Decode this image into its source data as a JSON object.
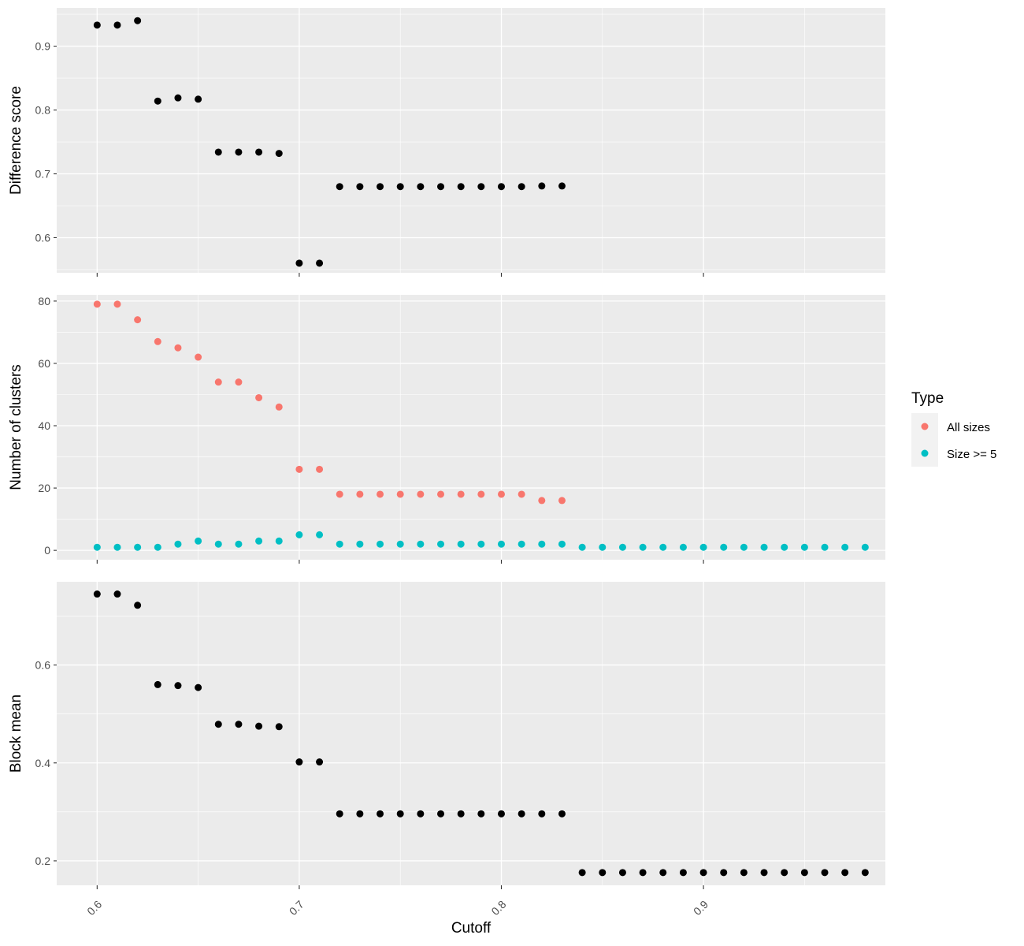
{
  "chart_data": [
    {
      "type": "scatter",
      "panel": "top",
      "ylabel": "Difference score",
      "xlim": [
        0.58,
        0.99
      ],
      "ylim": [
        0.545,
        0.96
      ],
      "y_ticks": [
        0.6,
        0.7,
        0.8,
        0.9
      ],
      "y_tick_labels": [
        "0.6",
        "0.7",
        "0.8",
        "0.9"
      ],
      "grid": true,
      "series": [
        {
          "color": "#000000",
          "x": [
            0.6,
            0.61,
            0.62,
            0.63,
            0.64,
            0.65,
            0.66,
            0.67,
            0.68,
            0.69,
            0.7,
            0.71,
            0.72,
            0.73,
            0.74,
            0.75,
            0.76,
            0.77,
            0.78,
            0.79,
            0.8,
            0.81,
            0.82,
            0.83
          ],
          "y": [
            0.933,
            0.933,
            0.94,
            0.814,
            0.819,
            0.817,
            0.734,
            0.734,
            0.734,
            0.732,
            0.56,
            0.56,
            0.68,
            0.68,
            0.68,
            0.68,
            0.68,
            0.68,
            0.68,
            0.68,
            0.68,
            0.68,
            0.681,
            0.681
          ]
        }
      ]
    },
    {
      "type": "scatter",
      "panel": "middle",
      "ylabel": "Number of clusters",
      "xlim": [
        0.58,
        0.99
      ],
      "ylim": [
        -3,
        82
      ],
      "y_ticks": [
        0,
        20,
        40,
        60,
        80
      ],
      "y_tick_labels": [
        "0",
        "20",
        "40",
        "60",
        "80"
      ],
      "grid": true,
      "series": [
        {
          "name": "All sizes",
          "color": "#F8766D",
          "x": [
            0.6,
            0.61,
            0.62,
            0.63,
            0.64,
            0.65,
            0.66,
            0.67,
            0.68,
            0.69,
            0.7,
            0.71,
            0.72,
            0.73,
            0.74,
            0.75,
            0.76,
            0.77,
            0.78,
            0.79,
            0.8,
            0.81,
            0.82,
            0.83
          ],
          "y": [
            79,
            79,
            74,
            67,
            65,
            62,
            54,
            54,
            49,
            46,
            26,
            26,
            18,
            18,
            18,
            18,
            18,
            18,
            18,
            18,
            18,
            18,
            16,
            16
          ]
        },
        {
          "name": "Size >= 5",
          "color": "#00BFC4",
          "x": [
            0.6,
            0.61,
            0.62,
            0.63,
            0.64,
            0.65,
            0.66,
            0.67,
            0.68,
            0.69,
            0.7,
            0.71,
            0.72,
            0.73,
            0.74,
            0.75,
            0.76,
            0.77,
            0.78,
            0.79,
            0.8,
            0.81,
            0.82,
            0.83,
            0.84,
            0.85,
            0.86,
            0.87,
            0.88,
            0.89,
            0.9,
            0.91,
            0.92,
            0.93,
            0.94,
            0.95,
            0.96,
            0.97,
            0.98
          ],
          "y": [
            1,
            1,
            1,
            1,
            2,
            3,
            2,
            2,
            3,
            3,
            5,
            5,
            2,
            2,
            2,
            2,
            2,
            2,
            2,
            2,
            2,
            2,
            2,
            2,
            1,
            1,
            1,
            1,
            1,
            1,
            1,
            1,
            1,
            1,
            1,
            1,
            1,
            1,
            1
          ]
        }
      ]
    },
    {
      "type": "scatter",
      "panel": "bottom",
      "ylabel": "Block mean",
      "xlabel": "Cutoff",
      "xlim": [
        0.58,
        0.99
      ],
      "ylim": [
        0.15,
        0.77
      ],
      "y_ticks": [
        0.2,
        0.4,
        0.6
      ],
      "y_tick_labels": [
        "0.2",
        "0.4",
        "0.6"
      ],
      "x_ticks": [
        0.6,
        0.7,
        0.8,
        0.9
      ],
      "x_tick_labels": [
        "0.6",
        "0.7",
        "0.8",
        "0.9"
      ],
      "grid": true,
      "series": [
        {
          "color": "#000000",
          "x": [
            0.6,
            0.61,
            0.62,
            0.63,
            0.64,
            0.65,
            0.66,
            0.67,
            0.68,
            0.69,
            0.7,
            0.71,
            0.72,
            0.73,
            0.74,
            0.75,
            0.76,
            0.77,
            0.78,
            0.79,
            0.8,
            0.81,
            0.82,
            0.83,
            0.84,
            0.85,
            0.86,
            0.87,
            0.88,
            0.89,
            0.9,
            0.91,
            0.92,
            0.93,
            0.94,
            0.95,
            0.96,
            0.97,
            0.98
          ],
          "y": [
            0.745,
            0.745,
            0.722,
            0.56,
            0.558,
            0.554,
            0.479,
            0.479,
            0.475,
            0.474,
            0.402,
            0.402,
            0.296,
            0.296,
            0.296,
            0.296,
            0.296,
            0.296,
            0.296,
            0.296,
            0.296,
            0.296,
            0.296,
            0.296,
            0.176,
            0.176,
            0.176,
            0.176,
            0.176,
            0.176,
            0.176,
            0.176,
            0.176,
            0.176,
            0.176,
            0.176,
            0.176,
            0.176,
            0.176
          ]
        }
      ]
    }
  ],
  "legend": {
    "title": "Type",
    "items": [
      {
        "label": "All sizes",
        "color": "#F8766D"
      },
      {
        "label": "Size >= 5",
        "color": "#00BFC4"
      }
    ],
    "placement": "right"
  },
  "colors": {
    "panel_background": "#EBEBEB",
    "grid_major": "#FFFFFF",
    "tick_text": "#4D4D4D"
  }
}
